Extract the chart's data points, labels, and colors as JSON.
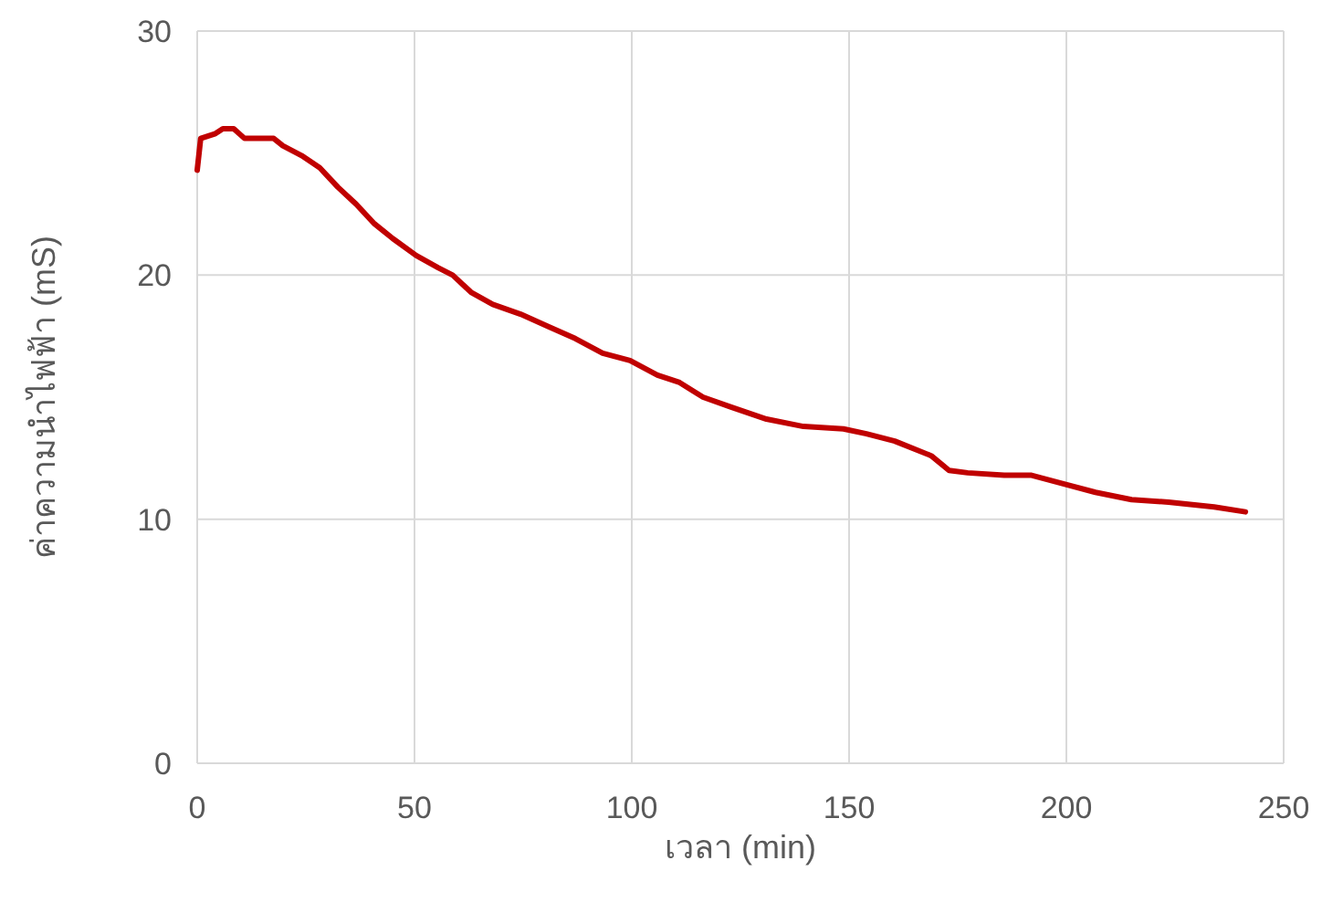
{
  "chart_data": {
    "type": "line",
    "xlabel": "เวลา (min)",
    "ylabel": "ค่าความนำไฟฟ้า (mS)",
    "xlim": [
      0,
      250
    ],
    "xticks": [
      0,
      50,
      100,
      150,
      200,
      250
    ],
    "ylim": [
      0,
      30
    ],
    "yticks": [
      0,
      10,
      20,
      30
    ],
    "grid": true,
    "marker": "none",
    "line_style": "solid",
    "series": [
      {
        "color": "#c00000",
        "x": [
          0,
          0.8,
          4.2,
          5.9,
          8.4,
          10.9,
          17.6,
          19.7,
          24,
          28.2,
          32.4,
          36.6,
          40.8,
          45,
          50.4,
          55.5,
          58.8,
          63,
          68,
          74.4,
          80.7,
          87,
          93.3,
          99.6,
          105.9,
          111,
          116.4,
          122.7,
          131,
          139.5,
          148.7,
          154,
          160.5,
          168.9,
          173,
          177.3,
          185.7,
          192,
          198.3,
          206.7,
          215,
          223.5,
          234,
          241.2
        ],
        "values": [
          24.3,
          25.6,
          25.8,
          26.0,
          26.0,
          25.6,
          25.6,
          25.3,
          24.9,
          24.4,
          23.6,
          22.9,
          22.1,
          21.5,
          20.8,
          20.3,
          20.0,
          19.3,
          18.8,
          18.4,
          17.9,
          17.4,
          16.8,
          16.5,
          15.9,
          15.6,
          15.0,
          14.6,
          14.1,
          13.8,
          13.7,
          13.5,
          13.2,
          12.6,
          12.0,
          11.9,
          11.8,
          11.8,
          11.5,
          11.1,
          10.8,
          10.7,
          10.5,
          10.3
        ]
      }
    ]
  }
}
